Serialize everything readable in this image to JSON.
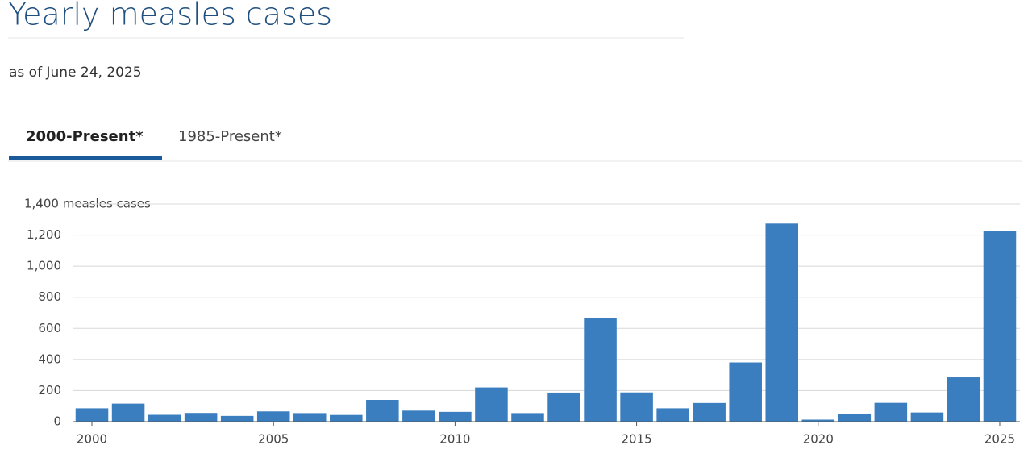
{
  "header": {
    "title": "Yearly measles cases",
    "subtitle": "as of June 24, 2025"
  },
  "tabs": [
    "2000-Present*",
    "1985-Present*"
  ],
  "chart_data": {
    "type": "bar",
    "x": [
      2000,
      2001,
      2002,
      2003,
      2004,
      2005,
      2006,
      2007,
      2008,
      2009,
      2010,
      2011,
      2012,
      2013,
      2014,
      2015,
      2016,
      2017,
      2018,
      2019,
      2020,
      2021,
      2022,
      2023,
      2024,
      2025
    ],
    "values": [
      86,
      116,
      44,
      56,
      37,
      66,
      55,
      43,
      140,
      71,
      63,
      220,
      55,
      187,
      667,
      188,
      86,
      120,
      381,
      1274,
      13,
      49,
      121,
      59,
      285,
      1227
    ],
    "color": "#3a7ebf",
    "xlim": [
      1999.5,
      2025.5
    ],
    "xticks": [
      2000,
      2005,
      2010,
      2015,
      2020,
      2025
    ],
    "ylim": [
      0,
      1400
    ],
    "yticks": [
      0,
      200,
      400,
      600,
      800,
      {
        "value": 1000,
        "label": "1,000"
      },
      {
        "value": 1200,
        "label": "1,200"
      },
      {
        "value": 1400,
        "label": "1,400 measles cases"
      }
    ],
    "grid": true
  }
}
